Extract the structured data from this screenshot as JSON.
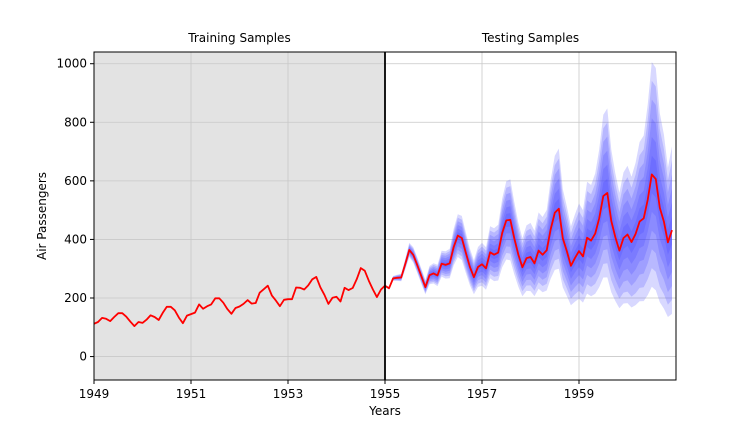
{
  "chart_data": {
    "type": "line",
    "region_labels": {
      "training": "Training Samples",
      "testing": "Testing Samples"
    },
    "xlabel": "Years",
    "ylabel": "Air Passengers",
    "xlim": [
      1949,
      1961
    ],
    "ylim": [
      -80,
      1040
    ],
    "split_year": 1955,
    "x_ticks": [
      1949,
      1951,
      1953,
      1955,
      1957,
      1959
    ],
    "x_tick_labels": [
      "1949",
      "1951",
      "1953",
      "1955",
      "1957",
      "1959"
    ],
    "y_ticks": [
      0,
      200,
      400,
      600,
      800,
      1000
    ],
    "y_tick_labels": [
      "0",
      "200",
      "400",
      "600",
      "800",
      "1000"
    ],
    "grid": true,
    "colors": {
      "observed": "#ff0000",
      "band": "#3a3aff",
      "split_line": "#000000",
      "training_background": "#e3e3e3",
      "grid": "#c8c8c8"
    },
    "x_start": 1949.0,
    "x_step_months": 1,
    "series": [
      {
        "values": [
          112,
          118,
          132,
          129,
          121,
          135,
          148,
          148,
          136,
          119,
          104,
          118,
          115,
          126,
          141,
          135,
          125,
          149,
          170,
          170,
          158,
          133,
          114,
          140,
          145,
          150,
          178,
          163,
          172,
          178,
          199,
          199,
          184,
          162,
          146,
          166,
          171,
          180,
          193,
          181,
          183,
          218,
          230,
          242,
          209,
          191,
          172,
          194,
          196,
          196,
          236,
          235,
          229,
          243,
          264,
          272,
          237,
          211,
          180,
          201,
          204,
          188,
          235,
          227,
          234,
          264,
          302,
          293,
          259,
          229,
          203,
          229,
          242,
          233,
          267,
          269,
          270,
          315,
          364,
          347,
          312,
          274,
          237,
          278,
          284,
          277,
          317,
          313,
          318,
          374,
          413,
          405,
          355,
          306,
          271,
          306,
          315,
          301,
          356,
          348,
          355,
          422,
          465,
          467,
          404,
          347,
          305,
          336,
          340,
          318,
          362,
          348,
          363,
          435,
          491,
          505,
          404,
          359,
          310,
          337,
          360,
          342,
          406,
          396,
          420,
          472,
          548,
          559,
          463,
          407,
          362,
          405,
          417,
          391,
          419,
          461,
          472,
          535,
          622,
          606,
          508,
          461,
          390,
          432
        ]
      }
    ]
  }
}
